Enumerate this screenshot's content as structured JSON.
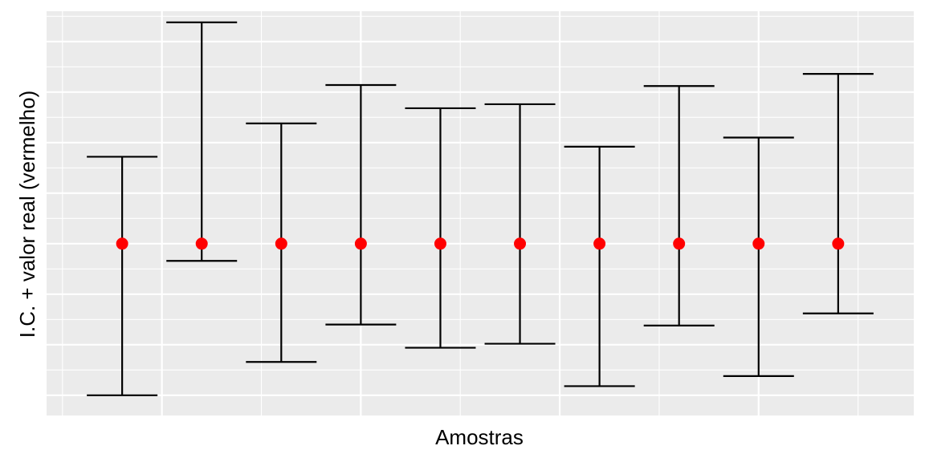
{
  "chart_data": {
    "type": "errorbar",
    "title": "",
    "xlabel": "Amostras",
    "ylabel": "I.C. + valor real (vermelho)",
    "x_tick_labels_shown": false,
    "y_tick_labels_shown": false,
    "grid": true,
    "legend": "none",
    "true_value": 0,
    "ylim": [
      -1.7,
      2.3
    ],
    "xlim": [
      0.05,
      10.95
    ],
    "samples": [
      {
        "x": 1,
        "point": 0,
        "lower": -1.5,
        "upper": 0.86
      },
      {
        "x": 2,
        "point": 0,
        "lower": -0.17,
        "upper": 2.19
      },
      {
        "x": 3,
        "point": 0,
        "lower": -1.17,
        "upper": 1.19
      },
      {
        "x": 4,
        "point": 0,
        "lower": -0.8,
        "upper": 1.57
      },
      {
        "x": 5,
        "point": 0,
        "lower": -1.03,
        "upper": 1.34
      },
      {
        "x": 6,
        "point": 0,
        "lower": -0.99,
        "upper": 1.38
      },
      {
        "x": 7,
        "point": 0,
        "lower": -1.41,
        "upper": 0.96
      },
      {
        "x": 8,
        "point": 0,
        "lower": -0.81,
        "upper": 1.56
      },
      {
        "x": 9,
        "point": 0,
        "lower": -1.31,
        "upper": 1.05
      },
      {
        "x": 10,
        "point": 0,
        "lower": -0.69,
        "upper": 1.68
      }
    ],
    "colors": {
      "panel_background": "#EBEBEB",
      "grid_line": "#FFFFFF",
      "error_bar": "#000000",
      "point": "#FF0000"
    }
  }
}
